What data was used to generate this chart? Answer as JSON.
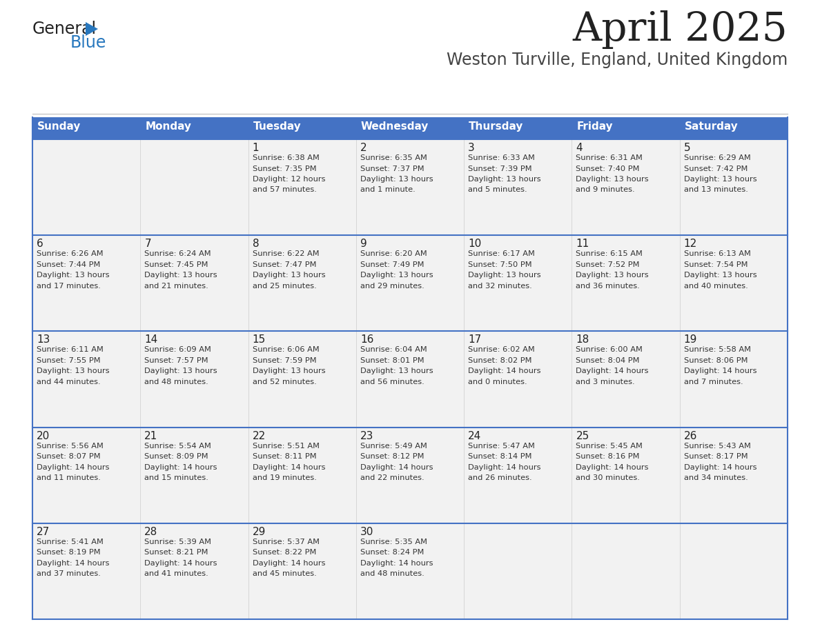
{
  "title": "April 2025",
  "subtitle": "Weston Turville, England, United Kingdom",
  "header_bg": "#4472C4",
  "header_text_color": "#FFFFFF",
  "cell_bg": "#F2F2F2",
  "border_color": "#4472C4",
  "days_of_week": [
    "Sunday",
    "Monday",
    "Tuesday",
    "Wednesday",
    "Thursday",
    "Friday",
    "Saturday"
  ],
  "title_color": "#222222",
  "subtitle_color": "#444444",
  "day_num_color": "#222222",
  "cell_text_color": "#333333",
  "logo_general_color": "#222222",
  "logo_blue_color": "#2878BE",
  "calendar_data": [
    [
      {
        "day": "",
        "lines": []
      },
      {
        "day": "",
        "lines": []
      },
      {
        "day": "1",
        "lines": [
          "Sunrise: 6:38 AM",
          "Sunset: 7:35 PM",
          "Daylight: 12 hours",
          "and 57 minutes."
        ]
      },
      {
        "day": "2",
        "lines": [
          "Sunrise: 6:35 AM",
          "Sunset: 7:37 PM",
          "Daylight: 13 hours",
          "and 1 minute."
        ]
      },
      {
        "day": "3",
        "lines": [
          "Sunrise: 6:33 AM",
          "Sunset: 7:39 PM",
          "Daylight: 13 hours",
          "and 5 minutes."
        ]
      },
      {
        "day": "4",
        "lines": [
          "Sunrise: 6:31 AM",
          "Sunset: 7:40 PM",
          "Daylight: 13 hours",
          "and 9 minutes."
        ]
      },
      {
        "day": "5",
        "lines": [
          "Sunrise: 6:29 AM",
          "Sunset: 7:42 PM",
          "Daylight: 13 hours",
          "and 13 minutes."
        ]
      }
    ],
    [
      {
        "day": "6",
        "lines": [
          "Sunrise: 6:26 AM",
          "Sunset: 7:44 PM",
          "Daylight: 13 hours",
          "and 17 minutes."
        ]
      },
      {
        "day": "7",
        "lines": [
          "Sunrise: 6:24 AM",
          "Sunset: 7:45 PM",
          "Daylight: 13 hours",
          "and 21 minutes."
        ]
      },
      {
        "day": "8",
        "lines": [
          "Sunrise: 6:22 AM",
          "Sunset: 7:47 PM",
          "Daylight: 13 hours",
          "and 25 minutes."
        ]
      },
      {
        "day": "9",
        "lines": [
          "Sunrise: 6:20 AM",
          "Sunset: 7:49 PM",
          "Daylight: 13 hours",
          "and 29 minutes."
        ]
      },
      {
        "day": "10",
        "lines": [
          "Sunrise: 6:17 AM",
          "Sunset: 7:50 PM",
          "Daylight: 13 hours",
          "and 32 minutes."
        ]
      },
      {
        "day": "11",
        "lines": [
          "Sunrise: 6:15 AM",
          "Sunset: 7:52 PM",
          "Daylight: 13 hours",
          "and 36 minutes."
        ]
      },
      {
        "day": "12",
        "lines": [
          "Sunrise: 6:13 AM",
          "Sunset: 7:54 PM",
          "Daylight: 13 hours",
          "and 40 minutes."
        ]
      }
    ],
    [
      {
        "day": "13",
        "lines": [
          "Sunrise: 6:11 AM",
          "Sunset: 7:55 PM",
          "Daylight: 13 hours",
          "and 44 minutes."
        ]
      },
      {
        "day": "14",
        "lines": [
          "Sunrise: 6:09 AM",
          "Sunset: 7:57 PM",
          "Daylight: 13 hours",
          "and 48 minutes."
        ]
      },
      {
        "day": "15",
        "lines": [
          "Sunrise: 6:06 AM",
          "Sunset: 7:59 PM",
          "Daylight: 13 hours",
          "and 52 minutes."
        ]
      },
      {
        "day": "16",
        "lines": [
          "Sunrise: 6:04 AM",
          "Sunset: 8:01 PM",
          "Daylight: 13 hours",
          "and 56 minutes."
        ]
      },
      {
        "day": "17",
        "lines": [
          "Sunrise: 6:02 AM",
          "Sunset: 8:02 PM",
          "Daylight: 14 hours",
          "and 0 minutes."
        ]
      },
      {
        "day": "18",
        "lines": [
          "Sunrise: 6:00 AM",
          "Sunset: 8:04 PM",
          "Daylight: 14 hours",
          "and 3 minutes."
        ]
      },
      {
        "day": "19",
        "lines": [
          "Sunrise: 5:58 AM",
          "Sunset: 8:06 PM",
          "Daylight: 14 hours",
          "and 7 minutes."
        ]
      }
    ],
    [
      {
        "day": "20",
        "lines": [
          "Sunrise: 5:56 AM",
          "Sunset: 8:07 PM",
          "Daylight: 14 hours",
          "and 11 minutes."
        ]
      },
      {
        "day": "21",
        "lines": [
          "Sunrise: 5:54 AM",
          "Sunset: 8:09 PM",
          "Daylight: 14 hours",
          "and 15 minutes."
        ]
      },
      {
        "day": "22",
        "lines": [
          "Sunrise: 5:51 AM",
          "Sunset: 8:11 PM",
          "Daylight: 14 hours",
          "and 19 minutes."
        ]
      },
      {
        "day": "23",
        "lines": [
          "Sunrise: 5:49 AM",
          "Sunset: 8:12 PM",
          "Daylight: 14 hours",
          "and 22 minutes."
        ]
      },
      {
        "day": "24",
        "lines": [
          "Sunrise: 5:47 AM",
          "Sunset: 8:14 PM",
          "Daylight: 14 hours",
          "and 26 minutes."
        ]
      },
      {
        "day": "25",
        "lines": [
          "Sunrise: 5:45 AM",
          "Sunset: 8:16 PM",
          "Daylight: 14 hours",
          "and 30 minutes."
        ]
      },
      {
        "day": "26",
        "lines": [
          "Sunrise: 5:43 AM",
          "Sunset: 8:17 PM",
          "Daylight: 14 hours",
          "and 34 minutes."
        ]
      }
    ],
    [
      {
        "day": "27",
        "lines": [
          "Sunrise: 5:41 AM",
          "Sunset: 8:19 PM",
          "Daylight: 14 hours",
          "and 37 minutes."
        ]
      },
      {
        "day": "28",
        "lines": [
          "Sunrise: 5:39 AM",
          "Sunset: 8:21 PM",
          "Daylight: 14 hours",
          "and 41 minutes."
        ]
      },
      {
        "day": "29",
        "lines": [
          "Sunrise: 5:37 AM",
          "Sunset: 8:22 PM",
          "Daylight: 14 hours",
          "and 45 minutes."
        ]
      },
      {
        "day": "30",
        "lines": [
          "Sunrise: 5:35 AM",
          "Sunset: 8:24 PM",
          "Daylight: 14 hours",
          "and 48 minutes."
        ]
      },
      {
        "day": "",
        "lines": []
      },
      {
        "day": "",
        "lines": []
      },
      {
        "day": "",
        "lines": []
      }
    ]
  ]
}
